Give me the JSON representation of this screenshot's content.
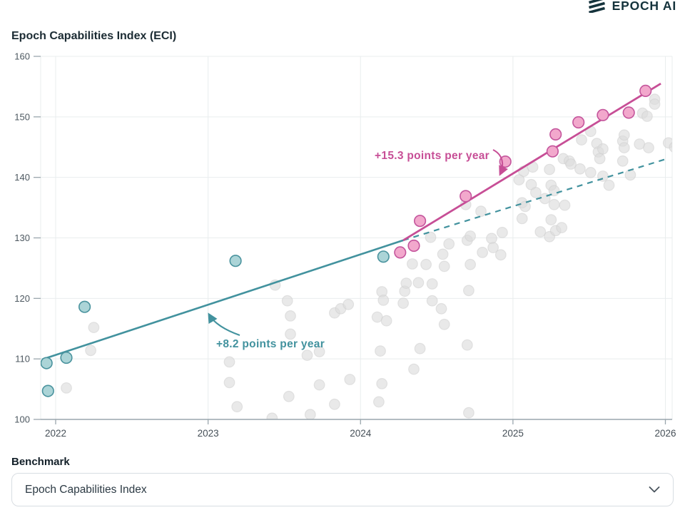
{
  "logo": {
    "text": "EPOCH AI"
  },
  "controls": {
    "benchmark_label": "Benchmark",
    "selected_benchmark": "Epoch Capabilities Index"
  },
  "chart_data": {
    "type": "scatter",
    "title": "Epoch Capabilities Index (ECI)",
    "xlabel": "",
    "ylabel": "",
    "x_ticks": [
      "2022",
      "2023",
      "2024",
      "2025",
      "2026"
    ],
    "x_tick_years": [
      2022,
      2023,
      2024,
      2025,
      2026
    ],
    "y_ticks": [
      100,
      110,
      120,
      130,
      140,
      150,
      160
    ],
    "xlim": [
      2021.9,
      2026.05
    ],
    "ylim": [
      100,
      160
    ],
    "grid": true,
    "legend": "none",
    "colors": {
      "teal": "#42929e",
      "pink": "#c74e96",
      "gridline": "#e9edee",
      "axis": "#9aa6ad",
      "y_label": "#4d5860",
      "x_label": "#454f57"
    },
    "series": [
      {
        "name": "all-models",
        "color_fill": "#dcdcdc",
        "color_stroke": "#cfcfcf",
        "points": [
          [
            2022.25,
            115.2
          ],
          [
            2022.23,
            111.4
          ],
          [
            2022.07,
            105.2
          ],
          [
            2023.14,
            109.5
          ],
          [
            2023.14,
            106.1
          ],
          [
            2023.19,
            102.1
          ],
          [
            2023.44,
            122.2
          ],
          [
            2023.52,
            119.6
          ],
          [
            2023.54,
            117.1
          ],
          [
            2023.54,
            114.1
          ],
          [
            2023.65,
            110.6
          ],
          [
            2023.73,
            111.2
          ],
          [
            2023.53,
            103.8
          ],
          [
            2023.73,
            105.7
          ],
          [
            2023.93,
            106.6
          ],
          [
            2023.83,
            102.5
          ],
          [
            2023.67,
            100.8
          ],
          [
            2023.42,
            100.2
          ],
          [
            2023.83,
            117.6
          ],
          [
            2023.87,
            118.3
          ],
          [
            2023.92,
            119.0
          ],
          [
            2024.14,
            121.1
          ],
          [
            2024.29,
            121.2
          ],
          [
            2024.15,
            119.7
          ],
          [
            2024.28,
            119.2
          ],
          [
            2024.47,
            119.6
          ],
          [
            2024.53,
            118.3
          ],
          [
            2024.11,
            116.9
          ],
          [
            2024.17,
            116.3
          ],
          [
            2024.55,
            115.7
          ],
          [
            2024.3,
            122.5
          ],
          [
            2024.38,
            122.6
          ],
          [
            2024.47,
            122.4
          ],
          [
            2024.34,
            125.7
          ],
          [
            2024.43,
            125.6
          ],
          [
            2024.55,
            125.3
          ],
          [
            2024.54,
            127.3
          ],
          [
            2024.46,
            130.1
          ],
          [
            2024.58,
            129.0
          ],
          [
            2024.7,
            129.6
          ],
          [
            2024.72,
            130.3
          ],
          [
            2024.69,
            135.5
          ],
          [
            2024.79,
            134.4
          ],
          [
            2024.86,
            129.9
          ],
          [
            2024.87,
            128.4
          ],
          [
            2024.8,
            127.6
          ],
          [
            2024.92,
            127.2
          ],
          [
            2024.93,
            130.9
          ],
          [
            2024.72,
            125.6
          ],
          [
            2024.71,
            121.3
          ],
          [
            2024.7,
            112.3
          ],
          [
            2024.13,
            111.3
          ],
          [
            2024.39,
            111.7
          ],
          [
            2024.35,
            108.3
          ],
          [
            2024.14,
            105.9
          ],
          [
            2024.12,
            102.9
          ],
          [
            2024.71,
            101.1
          ],
          [
            2025.07,
            141.0
          ],
          [
            2025.13,
            141.7
          ],
          [
            2025.04,
            139.6
          ],
          [
            2025.12,
            138.8
          ],
          [
            2025.15,
            137.5
          ],
          [
            2025.21,
            136.5
          ],
          [
            2025.25,
            138.7
          ],
          [
            2025.27,
            137.8
          ],
          [
            2025.06,
            135.8
          ],
          [
            2025.08,
            135.2
          ],
          [
            2025.06,
            133.2
          ],
          [
            2025.18,
            131.0
          ],
          [
            2025.24,
            130.2
          ],
          [
            2025.28,
            131.2
          ],
          [
            2025.32,
            131.7
          ],
          [
            2025.25,
            133.0
          ],
          [
            2025.27,
            135.5
          ],
          [
            2025.34,
            135.4
          ],
          [
            2025.24,
            141.3
          ],
          [
            2025.33,
            143.1
          ],
          [
            2025.37,
            142.7
          ],
          [
            2025.38,
            142.2
          ],
          [
            2025.44,
            141.4
          ],
          [
            2025.45,
            146.2
          ],
          [
            2025.51,
            147.6
          ],
          [
            2025.55,
            145.6
          ],
          [
            2025.51,
            140.8
          ],
          [
            2025.59,
            140.2
          ],
          [
            2025.63,
            138.7
          ],
          [
            2025.56,
            144.2
          ],
          [
            2025.59,
            144.7
          ],
          [
            2025.57,
            143.1
          ],
          [
            2025.72,
            146.0
          ],
          [
            2025.73,
            144.9
          ],
          [
            2025.73,
            147.0
          ],
          [
            2025.72,
            142.7
          ],
          [
            2025.77,
            140.4
          ],
          [
            2025.83,
            145.5
          ],
          [
            2025.89,
            144.9
          ],
          [
            2025.85,
            150.6
          ],
          [
            2025.88,
            150.1
          ],
          [
            2025.93,
            152.9
          ],
          [
            2025.93,
            152.1
          ],
          [
            2026.02,
            145.7
          ],
          [
            2026.06,
            145.0
          ]
        ]
      },
      {
        "name": "frontier-historical",
        "color_fill": "#abd4d7",
        "color_stroke": "#4a939e",
        "points": [
          [
            2021.94,
            109.3
          ],
          [
            2022.07,
            110.2
          ],
          [
            2021.95,
            104.7
          ],
          [
            2022.19,
            118.6
          ],
          [
            2023.18,
            126.2
          ],
          [
            2024.15,
            126.9
          ]
        ]
      },
      {
        "name": "frontier-recent",
        "color_fill": "#f2a8cc",
        "color_stroke": "#c4559c",
        "points": [
          [
            2024.26,
            127.6
          ],
          [
            2024.35,
            128.7
          ],
          [
            2024.39,
            132.8
          ],
          [
            2024.69,
            136.9
          ],
          [
            2024.95,
            142.6
          ],
          [
            2025.26,
            144.3
          ],
          [
            2025.28,
            147.1
          ],
          [
            2025.43,
            149.1
          ],
          [
            2025.59,
            150.3
          ],
          [
            2025.76,
            150.7
          ],
          [
            2025.87,
            154.3
          ]
        ]
      }
    ],
    "trend_lines": [
      {
        "name": "historical-trend",
        "style": "solid",
        "color": "#42929e",
        "width": 2.6,
        "from": [
          2021.91,
          109.9
        ],
        "to": [
          2024.28,
          129.6
        ],
        "slope_points_per_year": 8.2
      },
      {
        "name": "historical-trend-extrapolation",
        "style": "dashed",
        "color": "#42929e",
        "width": 2.2,
        "from": [
          2024.28,
          129.6
        ],
        "to": [
          2026.0,
          143.0
        ],
        "slope_points_per_year": 8.2
      },
      {
        "name": "recent-trend",
        "style": "solid",
        "color": "#c74e96",
        "width": 2.8,
        "from": [
          2024.28,
          129.6
        ],
        "to": [
          2025.97,
          155.5
        ],
        "slope_points_per_year": 15.3
      }
    ],
    "annotations": [
      {
        "name": "recent-trend-slope",
        "text": "+15.3 points per year",
        "color": "#c74e96"
      },
      {
        "name": "historical-trend-slope",
        "text": "+8.2 points per year",
        "color": "#42929e"
      }
    ]
  }
}
